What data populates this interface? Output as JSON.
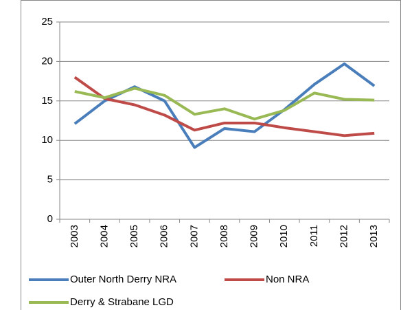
{
  "chart_data": {
    "type": "line",
    "categories": [
      "2003",
      "2004",
      "2005",
      "2006",
      "2007",
      "2008",
      "2009",
      "2010",
      "2011",
      "2012",
      "2013"
    ],
    "series": [
      {
        "name": "Outer North Derry NRA",
        "color": "#4a7ebb",
        "values": [
          12.1,
          15.0,
          16.8,
          15.0,
          9.1,
          11.5,
          11.1,
          13.9,
          17.1,
          19.7,
          16.9
        ]
      },
      {
        "name": "Non NRA",
        "color": "#be4b48",
        "values": [
          18.0,
          15.3,
          14.5,
          13.2,
          11.3,
          12.2,
          12.2,
          11.6,
          11.1,
          10.6,
          10.9
        ]
      },
      {
        "name": "Derry & Strabane LGD",
        "color": "#98b954",
        "values": [
          16.2,
          15.4,
          16.6,
          15.7,
          13.3,
          14.0,
          12.7,
          13.8,
          16.0,
          15.2,
          15.1
        ]
      }
    ],
    "ylim": [
      0,
      25
    ],
    "yticks": [
      0,
      5,
      10,
      15,
      20,
      25
    ],
    "grid": true,
    "legend": "bottom"
  }
}
